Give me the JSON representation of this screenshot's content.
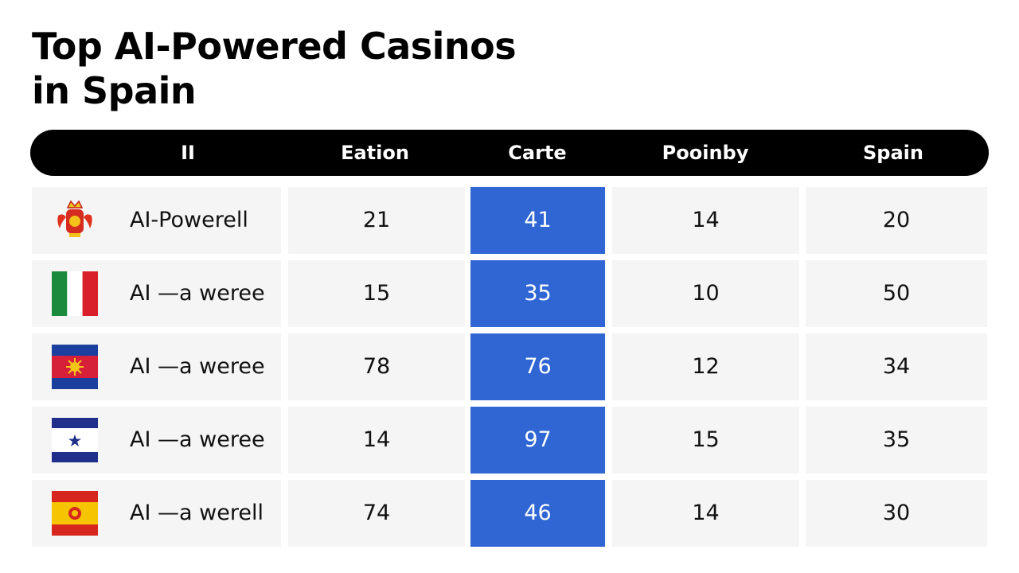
{
  "chart_data": {
    "type": "table",
    "title": "Top AI-Powered Casinos in Spain",
    "columns": [
      "II",
      "Eation",
      "Carte",
      "Pooinby",
      "Spain"
    ],
    "rows": [
      {
        "name": "AI-Powerell",
        "flag": "red-crest-icon",
        "values": [
          21,
          41,
          14,
          20
        ]
      },
      {
        "name": "AI —a weree",
        "flag": "italy-flag-icon",
        "values": [
          15,
          35,
          10,
          50
        ]
      },
      {
        "name": "AI —a weree",
        "flag": "blue-red-sun-flag-icon",
        "values": [
          78,
          76,
          12,
          34
        ]
      },
      {
        "name": "AI —a weree",
        "flag": "blue-white-star-flag-icon",
        "values": [
          14,
          97,
          15,
          35
        ]
      },
      {
        "name": "AI —a werell",
        "flag": "spain-flag-icon",
        "values": [
          74,
          46,
          14,
          30
        ]
      }
    ],
    "highlight_column": "Carte",
    "colors": {
      "header_bg": "#000000",
      "highlight": "#2f66d4",
      "row_bg": "#f5f5f5"
    }
  }
}
